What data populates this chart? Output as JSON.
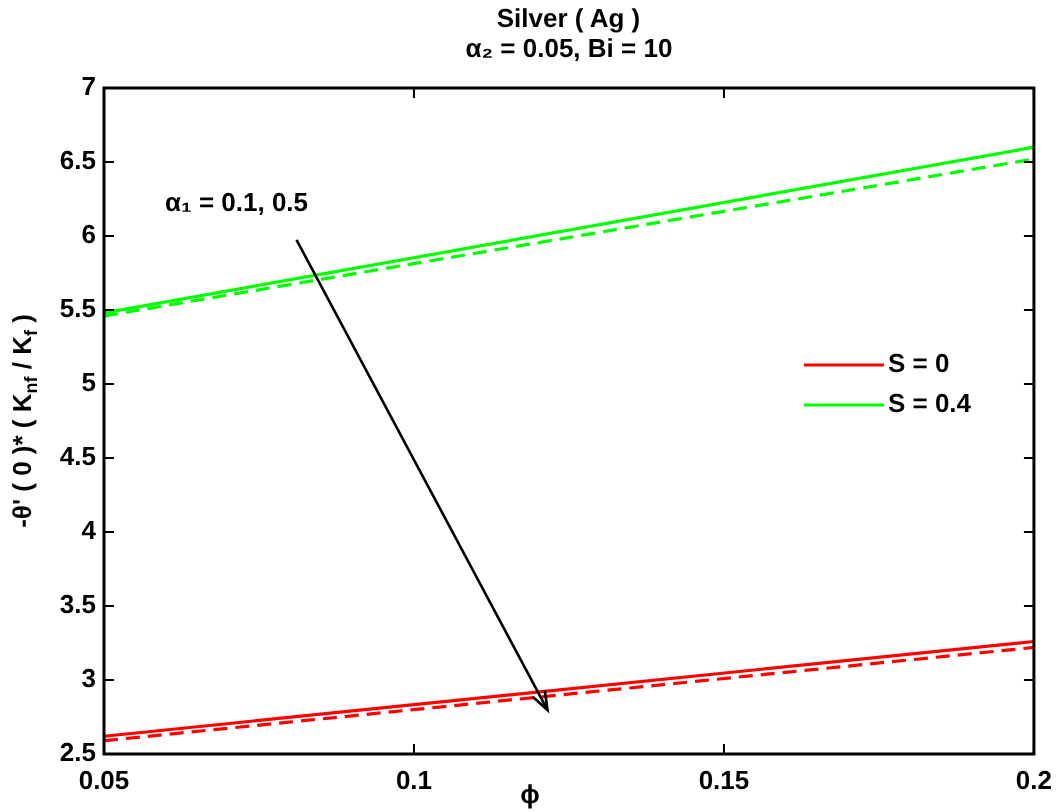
{
  "chart_data": {
    "type": "line",
    "title": "Silver ( Ag )",
    "subtitle": "α₂ = 0.05, Bi = 10",
    "xlabel": "ϕ",
    "ylabel": "-θ' ( 0 )* ( K$_{nf}$ / K$_{f}$ )",
    "x": [
      0.05,
      0.2
    ],
    "xlim": [
      0.05,
      0.2
    ],
    "xticks": [
      0.05,
      0.1,
      0.15,
      0.2
    ],
    "ylim": [
      2.5,
      7
    ],
    "yticks": [
      2.5,
      3,
      3.5,
      4,
      4.5,
      5,
      5.5,
      6,
      6.5,
      7
    ],
    "series": [
      {
        "name": "S = 0",
        "color": "#ff0000",
        "values": [
          2.62,
          3.26
        ]
      },
      {
        "name": "S = 0.4",
        "color": "#00ff00",
        "values": [
          5.48,
          6.6
        ]
      },
      {
        "color": "#ff0000",
        "values": [
          2.59,
          3.22
        ],
        "line_style": "dashed"
      },
      {
        "color": "#00ff00",
        "values": [
          5.46,
          6.52
        ],
        "line_style": "dashed"
      }
    ],
    "annotations": [
      "α₁ = 0.1, 0.5"
    ],
    "grid": false,
    "legend": "right",
    "marker": "none",
    "line_style": "solid"
  }
}
